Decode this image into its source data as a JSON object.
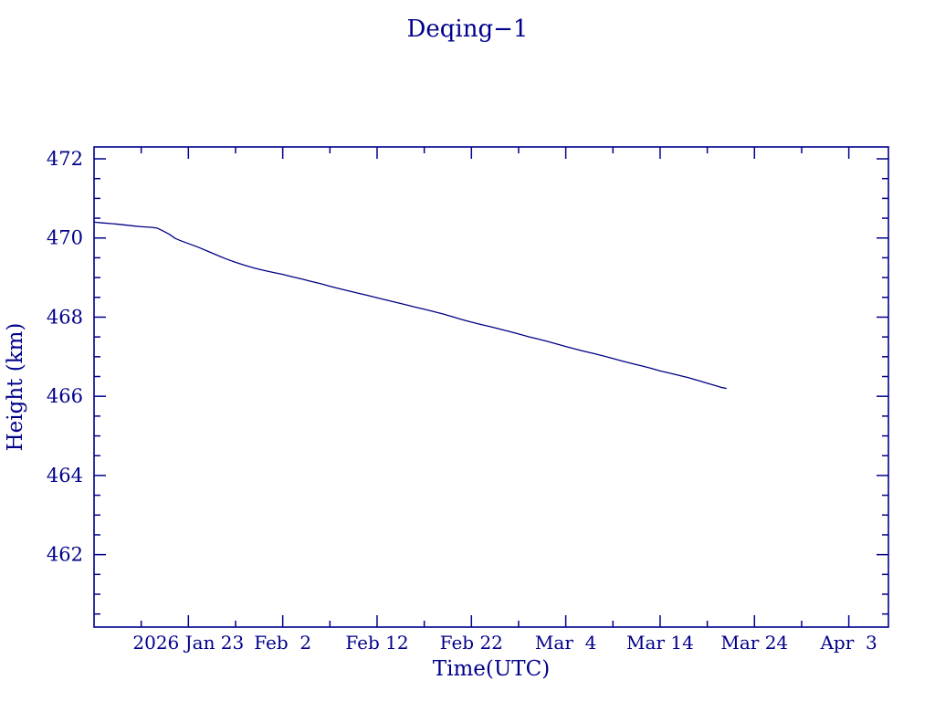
{
  "title": "Deqing−1",
  "colors": {
    "text": "#00008b",
    "axis": "#00008b",
    "line": "#000085",
    "background": "#ffffff"
  },
  "chart_data": {
    "type": "line",
    "title": "Deqing−1",
    "xlabel": "Time(UTC)",
    "ylabel": "Height (km)",
    "x_epoch": "2026 Jan 13 (day 0), UTC",
    "xlim": [
      0,
      84.2
    ],
    "ylim": [
      460.17,
      472.3
    ],
    "grid": false,
    "legend": "none",
    "x_major_ticks": [
      {
        "day": 10,
        "label": "2026 Jan 23"
      },
      {
        "day": 20,
        "label": "Feb  2"
      },
      {
        "day": 30,
        "label": "Feb 12"
      },
      {
        "day": 40,
        "label": "Feb 22"
      },
      {
        "day": 50,
        "label": "Mar  4"
      },
      {
        "day": 60,
        "label": "Mar 14"
      },
      {
        "day": 70,
        "label": "Mar 24"
      },
      {
        "day": 80,
        "label": "Apr  3"
      }
    ],
    "x_minor_days": [
      5,
      15,
      25,
      35,
      45,
      55,
      65,
      75
    ],
    "y_major_ticks": [
      472,
      470,
      468,
      466,
      464,
      462
    ],
    "y_minor_step": 0.5,
    "series": [
      {
        "name": "height",
        "points": [
          [
            0,
            470.4
          ],
          [
            1,
            470.38
          ],
          [
            2,
            470.36
          ],
          [
            3,
            470.335
          ],
          [
            4,
            470.31
          ],
          [
            5,
            470.285
          ],
          [
            6,
            470.27
          ],
          [
            6.7,
            470.25
          ],
          [
            7.3,
            470.18
          ],
          [
            8,
            470.09
          ],
          [
            8.6,
            469.99
          ],
          [
            9.2,
            469.93
          ],
          [
            10,
            469.86
          ],
          [
            11,
            469.77
          ],
          [
            12,
            469.67
          ],
          [
            13,
            469.57
          ],
          [
            14,
            469.47
          ],
          [
            15,
            469.385
          ],
          [
            16,
            469.31
          ],
          [
            17,
            469.24
          ],
          [
            18,
            469.18
          ],
          [
            19,
            469.13
          ],
          [
            20,
            469.08
          ],
          [
            21,
            469.02
          ],
          [
            22,
            468.965
          ],
          [
            23,
            468.905
          ],
          [
            24,
            468.845
          ],
          [
            25,
            468.78
          ],
          [
            26,
            468.72
          ],
          [
            27,
            468.66
          ],
          [
            28,
            468.605
          ],
          [
            29,
            468.55
          ],
          [
            30,
            468.49
          ],
          [
            31,
            468.43
          ],
          [
            32,
            468.375
          ],
          [
            33,
            468.315
          ],
          [
            34,
            468.255
          ],
          [
            35,
            468.2
          ],
          [
            36,
            468.14
          ],
          [
            37,
            468.08
          ],
          [
            38,
            468.01
          ],
          [
            39,
            467.94
          ],
          [
            40,
            467.875
          ],
          [
            41,
            467.815
          ],
          [
            42,
            467.76
          ],
          [
            43,
            467.7
          ],
          [
            44,
            467.64
          ],
          [
            45,
            467.575
          ],
          [
            46,
            467.51
          ],
          [
            47,
            467.45
          ],
          [
            48,
            467.39
          ],
          [
            49,
            467.325
          ],
          [
            50,
            467.26
          ],
          [
            51,
            467.195
          ],
          [
            52,
            467.135
          ],
          [
            53,
            467.08
          ],
          [
            54,
            467.02
          ],
          [
            55,
            466.955
          ],
          [
            56,
            466.89
          ],
          [
            57,
            466.83
          ],
          [
            58,
            466.77
          ],
          [
            59,
            466.71
          ],
          [
            60,
            466.64
          ],
          [
            61,
            466.585
          ],
          [
            62,
            466.53
          ],
          [
            63,
            466.47
          ],
          [
            64,
            466.4
          ],
          [
            65,
            466.33
          ],
          [
            66,
            466.26
          ],
          [
            66.6,
            466.22
          ],
          [
            67,
            466.2
          ]
        ]
      }
    ]
  }
}
